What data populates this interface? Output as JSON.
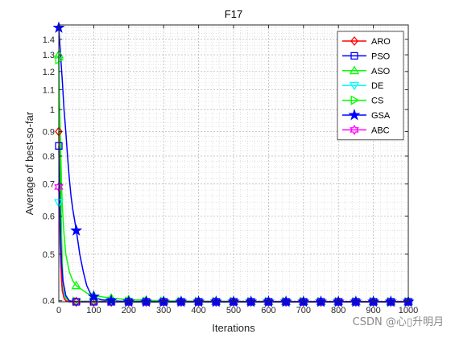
{
  "watermark": "CSDN @心▯升明月",
  "chart_data": {
    "type": "line",
    "title": "F17",
    "xlabel": "Iterations",
    "ylabel": "Average of best-so-far",
    "xlim": [
      0,
      1000
    ],
    "ylim": [
      0.398,
      1.5
    ],
    "yscale": "log",
    "grid": true,
    "minor_grid": true,
    "legend_position": "top-right",
    "x_ticks": [
      0,
      100,
      200,
      300,
      400,
      500,
      600,
      700,
      800,
      900,
      1000
    ],
    "x_tick_labels": [
      "0",
      "100",
      "200",
      "300",
      "400",
      "500",
      "600",
      "700",
      "800",
      "900",
      "1000"
    ],
    "y_ticks": [
      0.4,
      0.5,
      0.6,
      0.7,
      0.8,
      0.9,
      1.0,
      1.1,
      1.2,
      1.3,
      1.4
    ],
    "y_tick_labels": [
      "0.4",
      "0.5",
      "0.6",
      "0.7",
      "0.8",
      "0.9",
      "1",
      "1.1",
      "1.2",
      "1.3",
      "1.4"
    ],
    "series": [
      {
        "name": "ARO",
        "color": "#ff0000",
        "marker": "diamond",
        "x": [
          0,
          2,
          4,
          6,
          8,
          10,
          15,
          20,
          30,
          50,
          100,
          1000
        ],
        "y": [
          0.9,
          0.72,
          0.58,
          0.5,
          0.45,
          0.42,
          0.405,
          0.4,
          0.398,
          0.398,
          0.398,
          0.398
        ]
      },
      {
        "name": "PSO",
        "color": "#0000ff",
        "marker": "square",
        "x": [
          0,
          2,
          5,
          8,
          12,
          20,
          30,
          50,
          100,
          1000
        ],
        "y": [
          0.84,
          0.68,
          0.55,
          0.48,
          0.44,
          0.41,
          0.4,
          0.398,
          0.398,
          0.398
        ]
      },
      {
        "name": "ASO",
        "color": "#00ff00",
        "marker": "triangle-up",
        "x": [
          0,
          2,
          5,
          8,
          10,
          15,
          20,
          30,
          40,
          50,
          60,
          80,
          100,
          150,
          200,
          300,
          400,
          1000
        ],
        "y": [
          1.3,
          1.05,
          0.84,
          0.7,
          0.63,
          0.55,
          0.5,
          0.46,
          0.44,
          0.43,
          0.425,
          0.415,
          0.41,
          0.405,
          0.402,
          0.4,
          0.399,
          0.398
        ]
      },
      {
        "name": "DE",
        "color": "#00ffff",
        "marker": "triangle-down",
        "x": [
          0,
          2,
          5,
          10,
          15,
          20,
          30,
          50,
          1000
        ],
        "y": [
          0.64,
          0.55,
          0.48,
          0.43,
          0.41,
          0.4,
          0.398,
          0.398,
          0.398
        ]
      },
      {
        "name": "CS",
        "color": "#00ff00",
        "marker": "triangle-right",
        "x": [
          0,
          2,
          4,
          6,
          8,
          10,
          12,
          15,
          20,
          30,
          1000
        ],
        "y": [
          1.27,
          1.0,
          0.8,
          0.65,
          0.55,
          0.48,
          0.44,
          0.42,
          0.405,
          0.399,
          0.398
        ]
      },
      {
        "name": "GSA",
        "color": "#0000ff",
        "marker": "star",
        "x": [
          0,
          5,
          10,
          15,
          20,
          25,
          30,
          35,
          40,
          45,
          50,
          55,
          60,
          70,
          80,
          90,
          100,
          120,
          150,
          200,
          1000
        ],
        "y": [
          1.48,
          1.3,
          1.15,
          1.0,
          0.9,
          0.8,
          0.72,
          0.66,
          0.62,
          0.59,
          0.56,
          0.53,
          0.5,
          0.46,
          0.43,
          0.415,
          0.408,
          0.402,
          0.4,
          0.398,
          0.398
        ]
      },
      {
        "name": "ABC",
        "color": "#ff00ff",
        "marker": "hexagram",
        "x": [
          0,
          2,
          4,
          6,
          8,
          10,
          15,
          20,
          30,
          1000
        ],
        "y": [
          0.69,
          0.6,
          0.52,
          0.47,
          0.44,
          0.42,
          0.405,
          0.4,
          0.398,
          0.398
        ]
      }
    ]
  }
}
